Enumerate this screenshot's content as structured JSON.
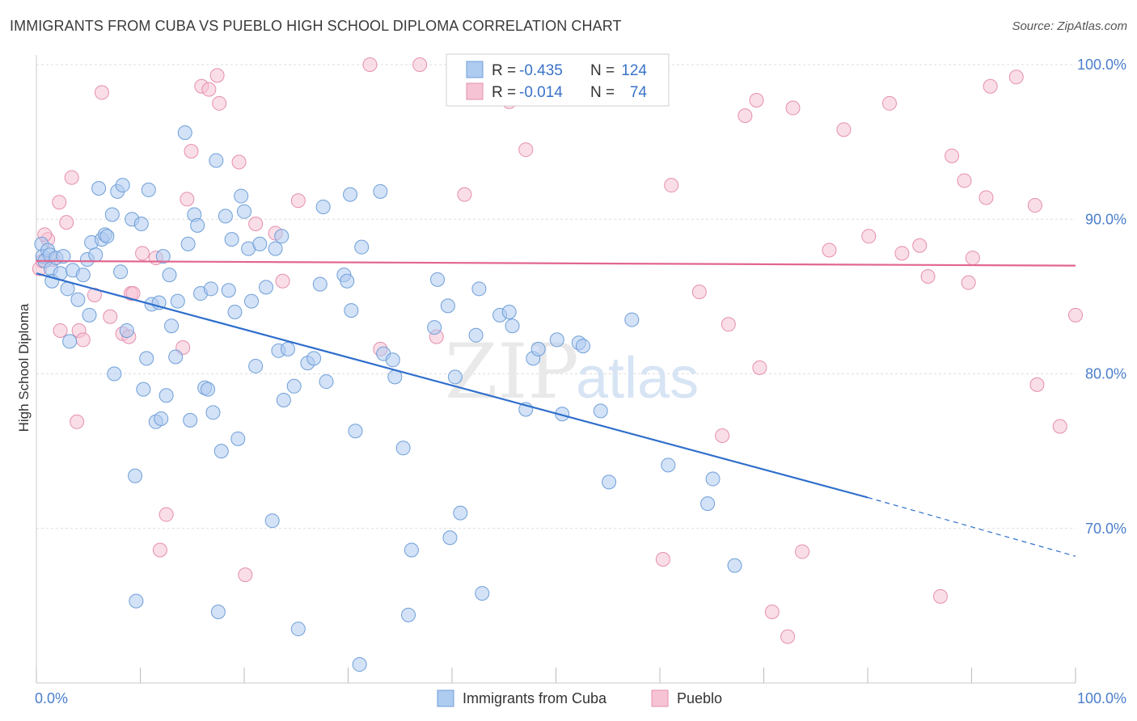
{
  "title": "IMMIGRANTS FROM CUBA VS PUEBLO HIGH SCHOOL DIPLOMA CORRELATION CHART",
  "source": "Source: ZipAtlas.com",
  "watermark": {
    "zip": "ZIP",
    "atlas": "atlas"
  },
  "legend": {
    "rows": [
      {
        "r_label": "R =",
        "r_value": "-0.435",
        "n_label": "N =",
        "n_value": "124"
      },
      {
        "r_label": "R =",
        "r_value": "-0.014",
        "n_label": "N =",
        "n_value": "74"
      }
    ]
  },
  "bottom_legend": [
    "Immigrants from Cuba",
    "Pueblo"
  ],
  "colors": {
    "blue_fill": "#aecbf0",
    "blue_stroke": "#6f9fd8",
    "blue_line": "#2f6fcc",
    "pink_fill": "#f6c3d4",
    "pink_stroke": "#e58fae",
    "pink_line": "#e2668f",
    "grid": "#dddddd",
    "tick_label": "#4a7ecb"
  },
  "chart_data": {
    "type": "scatter",
    "title": "IMMIGRANTS FROM CUBA VS PUEBLO HIGH SCHOOL DIPLOMA CORRELATION CHART",
    "xlabel": "",
    "ylabel": "High School Diploma",
    "xlim": [
      0,
      100
    ],
    "ylim": [
      60,
      100
    ],
    "x_tick_labels": [
      "0.0%",
      "100.0%"
    ],
    "y_ticks": [
      70,
      80,
      90,
      100
    ],
    "y_tick_labels": [
      "70.0%",
      "80.0%",
      "90.0%",
      "100.0%"
    ],
    "grid": true,
    "legend_position": "top-center",
    "series": [
      {
        "name": "Immigrants from Cuba",
        "r": -0.435,
        "n": 124,
        "trend": {
          "x0": 0,
          "y0": 86.5,
          "x1": 80,
          "y1": 72.0,
          "dashed_to_x": 100,
          "dashed_to_y": 68.2
        },
        "points": [
          [
            0.5,
            88.4
          ],
          [
            0.6,
            87.6
          ],
          [
            0.8,
            87.3
          ],
          [
            1.1,
            88.0
          ],
          [
            1.3,
            87.7
          ],
          [
            1.4,
            86.8
          ],
          [
            1.5,
            86.0
          ],
          [
            1.9,
            87.5
          ],
          [
            2.3,
            86.5
          ],
          [
            2.6,
            87.6
          ],
          [
            3.0,
            85.5
          ],
          [
            3.2,
            82.1
          ],
          [
            3.5,
            86.7
          ],
          [
            4.0,
            84.8
          ],
          [
            4.5,
            86.4
          ],
          [
            4.9,
            87.4
          ],
          [
            5.1,
            83.8
          ],
          [
            5.3,
            88.5
          ],
          [
            5.7,
            87.7
          ],
          [
            6.0,
            92.0
          ],
          [
            6.3,
            88.7
          ],
          [
            6.6,
            89.0
          ],
          [
            6.8,
            88.9
          ],
          [
            7.3,
            90.3
          ],
          [
            7.5,
            80.0
          ],
          [
            7.8,
            91.8
          ],
          [
            8.1,
            86.6
          ],
          [
            8.3,
            92.2
          ],
          [
            8.7,
            82.8
          ],
          [
            9.2,
            90.0
          ],
          [
            9.5,
            73.4
          ],
          [
            9.6,
            65.3
          ],
          [
            10.1,
            89.7
          ],
          [
            10.3,
            79.0
          ],
          [
            10.6,
            81.0
          ],
          [
            10.8,
            91.9
          ],
          [
            11.1,
            84.5
          ],
          [
            11.5,
            76.9
          ],
          [
            11.8,
            84.6
          ],
          [
            12.0,
            77.1
          ],
          [
            12.2,
            87.6
          ],
          [
            12.5,
            78.6
          ],
          [
            12.8,
            86.4
          ],
          [
            13.0,
            83.1
          ],
          [
            13.4,
            81.1
          ],
          [
            13.6,
            84.7
          ],
          [
            14.3,
            95.6
          ],
          [
            14.6,
            88.4
          ],
          [
            14.8,
            77.0
          ],
          [
            15.2,
            90.3
          ],
          [
            15.5,
            89.6
          ],
          [
            15.8,
            85.2
          ],
          [
            16.2,
            79.1
          ],
          [
            16.5,
            79.0
          ],
          [
            16.8,
            85.5
          ],
          [
            17.0,
            77.5
          ],
          [
            17.3,
            93.8
          ],
          [
            17.5,
            64.6
          ],
          [
            17.8,
            75.0
          ],
          [
            18.2,
            90.2
          ],
          [
            18.5,
            85.4
          ],
          [
            18.8,
            88.7
          ],
          [
            19.1,
            84.0
          ],
          [
            19.4,
            75.8
          ],
          [
            19.7,
            91.5
          ],
          [
            20.0,
            90.5
          ],
          [
            20.4,
            88.1
          ],
          [
            20.7,
            84.7
          ],
          [
            21.1,
            80.5
          ],
          [
            21.5,
            88.4
          ],
          [
            22.1,
            85.6
          ],
          [
            22.7,
            70.5
          ],
          [
            23.0,
            88.1
          ],
          [
            23.3,
            81.5
          ],
          [
            23.6,
            88.9
          ],
          [
            23.8,
            78.3
          ],
          [
            24.2,
            81.6
          ],
          [
            24.8,
            79.2
          ],
          [
            25.2,
            63.5
          ],
          [
            26.1,
            80.7
          ],
          [
            26.7,
            81.0
          ],
          [
            27.3,
            85.8
          ],
          [
            27.6,
            90.8
          ],
          [
            27.9,
            79.5
          ],
          [
            29.6,
            86.4
          ],
          [
            29.9,
            86.0
          ],
          [
            30.2,
            91.6
          ],
          [
            30.3,
            84.1
          ],
          [
            30.7,
            76.3
          ],
          [
            31.3,
            88.2
          ],
          [
            31.1,
            61.2
          ],
          [
            33.1,
            91.8
          ],
          [
            33.4,
            81.3
          ],
          [
            34.3,
            80.9
          ],
          [
            34.5,
            79.8
          ],
          [
            35.3,
            75.2
          ],
          [
            35.8,
            64.4
          ],
          [
            36.1,
            68.6
          ],
          [
            38.3,
            83.0
          ],
          [
            38.6,
            86.1
          ],
          [
            39.6,
            84.4
          ],
          [
            39.8,
            69.4
          ],
          [
            40.3,
            79.8
          ],
          [
            40.8,
            71.0
          ],
          [
            42.3,
            82.5
          ],
          [
            42.6,
            85.5
          ],
          [
            42.9,
            65.8
          ],
          [
            44.6,
            83.8
          ],
          [
            45.5,
            84.0
          ],
          [
            45.8,
            83.1
          ],
          [
            47.1,
            77.7
          ],
          [
            47.8,
            81.0
          ],
          [
            48.3,
            81.6
          ],
          [
            50.1,
            82.2
          ],
          [
            50.6,
            77.4
          ],
          [
            52.2,
            82.0
          ],
          [
            52.6,
            81.8
          ],
          [
            54.3,
            77.6
          ],
          [
            55.1,
            73.0
          ],
          [
            57.3,
            83.5
          ],
          [
            60.8,
            74.1
          ],
          [
            64.6,
            71.6
          ],
          [
            65.1,
            73.2
          ],
          [
            67.2,
            67.6
          ]
        ]
      },
      {
        "name": "Pueblo",
        "r": -0.014,
        "n": 74,
        "trend": {
          "x0": 0,
          "y0": 87.3,
          "x1": 100,
          "y1": 87.0
        },
        "points": [
          [
            0.3,
            86.8
          ],
          [
            0.6,
            87.3
          ],
          [
            1.1,
            88.7
          ],
          [
            1.6,
            87.4
          ],
          [
            2.2,
            91.1
          ],
          [
            2.3,
            82.8
          ],
          [
            2.9,
            89.8
          ],
          [
            3.4,
            92.7
          ],
          [
            3.9,
            76.9
          ],
          [
            4.1,
            82.8
          ],
          [
            4.5,
            82.2
          ],
          [
            5.6,
            85.1
          ],
          [
            6.3,
            98.2
          ],
          [
            7.1,
            83.7
          ],
          [
            8.3,
            82.6
          ],
          [
            8.9,
            82.4
          ],
          [
            9.1,
            85.2
          ],
          [
            9.3,
            85.2
          ],
          [
            10.2,
            87.8
          ],
          [
            11.5,
            87.5
          ],
          [
            11.9,
            68.6
          ],
          [
            12.5,
            70.9
          ],
          [
            14.1,
            81.7
          ],
          [
            14.5,
            91.3
          ],
          [
            14.9,
            94.4
          ],
          [
            15.9,
            98.6
          ],
          [
            16.6,
            98.4
          ],
          [
            17.4,
            99.3
          ],
          [
            17.6,
            97.5
          ],
          [
            19.5,
            93.7
          ],
          [
            20.1,
            67.0
          ],
          [
            21.1,
            89.7
          ],
          [
            23.0,
            89.1
          ],
          [
            23.7,
            86.0
          ],
          [
            25.2,
            91.2
          ],
          [
            32.1,
            100.0
          ],
          [
            33.1,
            81.6
          ],
          [
            36.9,
            100.0
          ],
          [
            38.5,
            82.4
          ],
          [
            41.2,
            91.6
          ],
          [
            45.5,
            97.6
          ],
          [
            47.1,
            94.5
          ],
          [
            61.1,
            92.2
          ],
          [
            63.8,
            85.3
          ],
          [
            66.6,
            83.2
          ],
          [
            68.2,
            96.7
          ],
          [
            69.3,
            97.7
          ],
          [
            69.6,
            80.4
          ],
          [
            70.8,
            64.6
          ],
          [
            72.3,
            63.0
          ],
          [
            72.8,
            97.2
          ],
          [
            73.7,
            68.5
          ],
          [
            76.3,
            88.0
          ],
          [
            77.7,
            95.8
          ],
          [
            80.1,
            88.9
          ],
          [
            82.1,
            97.5
          ],
          [
            83.3,
            87.8
          ],
          [
            85.0,
            88.3
          ],
          [
            85.8,
            86.3
          ],
          [
            87.0,
            65.6
          ],
          [
            88.1,
            94.1
          ],
          [
            89.3,
            92.5
          ],
          [
            89.7,
            85.9
          ],
          [
            90.1,
            87.5
          ],
          [
            91.4,
            91.4
          ],
          [
            91.8,
            98.6
          ],
          [
            94.3,
            99.2
          ],
          [
            96.1,
            90.9
          ],
          [
            96.3,
            79.3
          ],
          [
            98.5,
            76.6
          ],
          [
            100.0,
            83.8
          ],
          [
            60.3,
            68.0
          ],
          [
            66.0,
            76.0
          ],
          [
            0.8,
            89.0
          ]
        ]
      }
    ]
  }
}
